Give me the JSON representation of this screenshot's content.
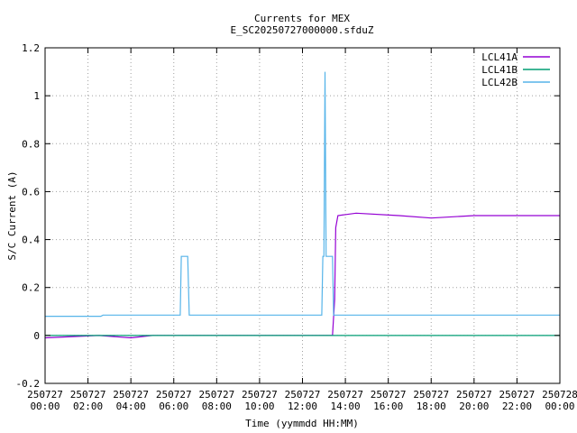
{
  "chart_data": {
    "type": "line",
    "title": "Currents for MEX",
    "subtitle": "E_SC20250727000000.sfduZ",
    "xlabel": "Time (yymmdd HH:MM)",
    "ylabel": "S/C Current (A)",
    "xlim": [
      0,
      24
    ],
    "ylim": [
      -0.2,
      1.2
    ],
    "grid": true,
    "legend_position": "top-right",
    "x_ticks": [
      {
        "value": 0,
        "date": "250727",
        "time": "00:00"
      },
      {
        "value": 2,
        "date": "250727",
        "time": "02:00"
      },
      {
        "value": 4,
        "date": "250727",
        "time": "04:00"
      },
      {
        "value": 6,
        "date": "250727",
        "time": "06:00"
      },
      {
        "value": 8,
        "date": "250727",
        "time": "08:00"
      },
      {
        "value": 10,
        "date": "250727",
        "time": "10:00"
      },
      {
        "value": 12,
        "date": "250727",
        "time": "12:00"
      },
      {
        "value": 14,
        "date": "250727",
        "time": "14:00"
      },
      {
        "value": 16,
        "date": "250727",
        "time": "16:00"
      },
      {
        "value": 18,
        "date": "250727",
        "time": "18:00"
      },
      {
        "value": 20,
        "date": "250727",
        "time": "20:00"
      },
      {
        "value": 22,
        "date": "250727",
        "time": "22:00"
      },
      {
        "value": 24,
        "date": "250728",
        "time": "00:00"
      }
    ],
    "y_ticks": [
      {
        "value": -0.2,
        "label": "-0.2"
      },
      {
        "value": 0,
        "label": "0"
      },
      {
        "value": 0.2,
        "label": "0.2"
      },
      {
        "value": 0.4,
        "label": "0.4"
      },
      {
        "value": 0.6,
        "label": "0.6"
      },
      {
        "value": 0.8,
        "label": "0.8"
      },
      {
        "value": 1,
        "label": "1"
      },
      {
        "value": 1.2,
        "label": "1.2"
      }
    ],
    "series": [
      {
        "name": "LCL41A",
        "color": "#9400d3",
        "points": [
          [
            0,
            -0.01
          ],
          [
            2.5,
            0.0
          ],
          [
            4.0,
            -0.01
          ],
          [
            5.0,
            0.0
          ],
          [
            12.0,
            0.0
          ],
          [
            13.4,
            0.0
          ],
          [
            13.5,
            0.15
          ],
          [
            13.55,
            0.45
          ],
          [
            13.65,
            0.5
          ],
          [
            14.5,
            0.51
          ],
          [
            16.5,
            0.5
          ],
          [
            18.0,
            0.49
          ],
          [
            20.0,
            0.5
          ],
          [
            22.0,
            0.5
          ],
          [
            24.0,
            0.5
          ]
        ]
      },
      {
        "name": "LCL41B",
        "color": "#009e73",
        "points": [
          [
            0,
            0.0
          ],
          [
            5.0,
            0.0
          ],
          [
            13.5,
            0.0
          ],
          [
            14.0,
            0.0
          ],
          [
            24.0,
            0.0
          ]
        ]
      },
      {
        "name": "LCL42B",
        "color": "#56b4e9",
        "points": [
          [
            0,
            0.08
          ],
          [
            2.6,
            0.08
          ],
          [
            2.7,
            0.085
          ],
          [
            4.95,
            0.085
          ],
          [
            6.3,
            0.085
          ],
          [
            6.35,
            0.33
          ],
          [
            6.65,
            0.33
          ],
          [
            6.72,
            0.085
          ],
          [
            12.9,
            0.085
          ],
          [
            12.95,
            0.33
          ],
          [
            13.0,
            0.33
          ],
          [
            13.05,
            1.1
          ],
          [
            13.1,
            0.33
          ],
          [
            13.4,
            0.33
          ],
          [
            13.45,
            0.085
          ],
          [
            24.0,
            0.085
          ]
        ]
      }
    ]
  }
}
